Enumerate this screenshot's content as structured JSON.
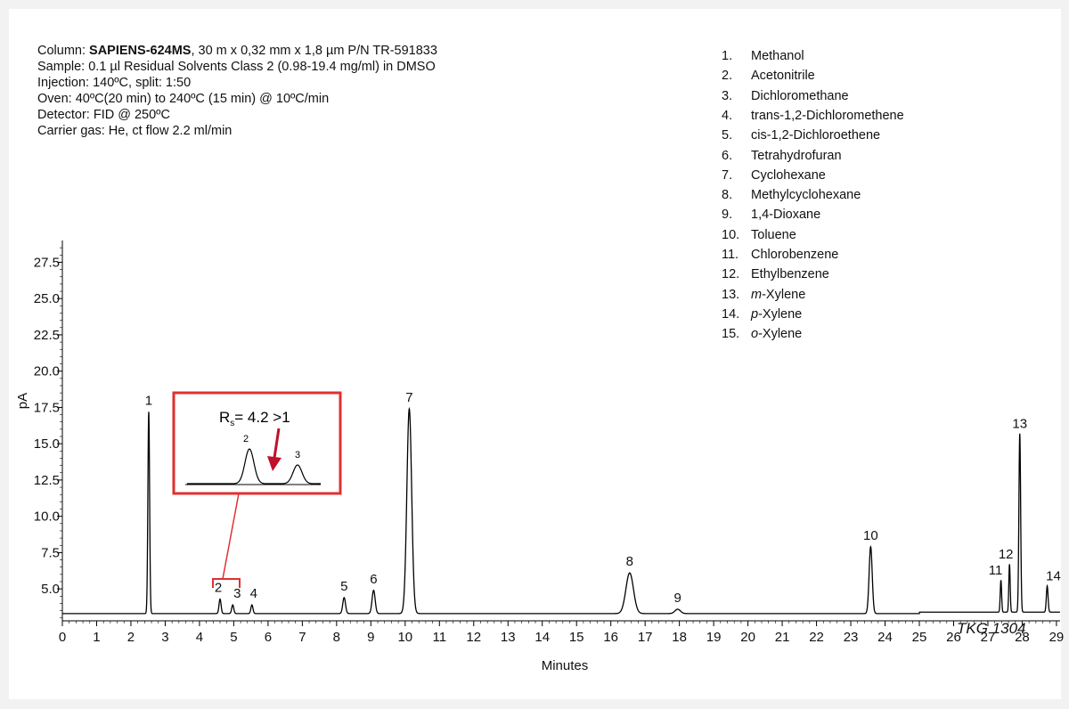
{
  "conditions": {
    "column_prefix": "Column: ",
    "column_name": "SAPIENS-624MS",
    "column_suffix": ", 30 m x 0,32 mm x 1,8 µm P/N TR-591833",
    "sample": "Sample: 0.1 µl Residual Solvents Class 2 (0.98-19.4 mg/ml) in DMSO",
    "injection": "Injection: 140ºC, split: 1:50",
    "oven": "Oven: 40ºC(20 min) to 240ºC (15 min) @ 10ºC/min",
    "detector": "Detector: FID @ 250ºC",
    "carrier": "Carrier gas: He, ct flow 2.2 ml/min"
  },
  "legend": [
    {
      "num": "1.",
      "prefix": "",
      "name": "Methanol"
    },
    {
      "num": "2.",
      "prefix": "",
      "name": "Acetonitrile"
    },
    {
      "num": "3.",
      "prefix": "",
      "name": "Dichloromethane"
    },
    {
      "num": "4.",
      "prefix": "",
      "name": "trans-1,2-Dichloromethene"
    },
    {
      "num": "5.",
      "prefix": "",
      "name": "cis-1,2-Dichloroethene"
    },
    {
      "num": "6.",
      "prefix": "",
      "name": "Tetrahydrofuran"
    },
    {
      "num": "7.",
      "prefix": "",
      "name": "Cyclohexane"
    },
    {
      "num": "8.",
      "prefix": "",
      "name": "Methylcyclohexane"
    },
    {
      "num": "9.",
      "prefix": "",
      "name": "1,4-Dioxane"
    },
    {
      "num": "10.",
      "prefix": "",
      "name": "Toluene"
    },
    {
      "num": "11.",
      "prefix": "",
      "name": "Chlorobenzene"
    },
    {
      "num": "12.",
      "prefix": "",
      "name": "Ethylbenzene"
    },
    {
      "num": "13.",
      "prefix": "m",
      "name": "-Xylene"
    },
    {
      "num": "14.",
      "prefix": "p",
      "name": "-Xylene"
    },
    {
      "num": "15.",
      "prefix": "o",
      "name": "-Xylene"
    }
  ],
  "inset": {
    "rs_symbol": "R",
    "rs_subscript": "s",
    "rs_text": "= 4.2 >1",
    "peak_labels": [
      "2",
      "3"
    ]
  },
  "code_label": "TKG 1304",
  "colors": {
    "trace": "#000000",
    "highlight": "#e03030",
    "arrow": "#c0102a"
  },
  "chart_data": {
    "type": "line",
    "xlabel": "Minutes",
    "ylabel": "pA",
    "xlim": [
      0,
      29.2
    ],
    "ylim": [
      2.8,
      29
    ],
    "x_ticks": [
      0,
      1,
      2,
      3,
      4,
      5,
      6,
      7,
      8,
      9,
      10,
      11,
      12,
      13,
      14,
      15,
      16,
      17,
      18,
      19,
      20,
      21,
      22,
      23,
      24,
      25,
      26,
      27,
      28,
      29
    ],
    "y_ticks": [
      5.0,
      7.5,
      10.0,
      12.5,
      15.0,
      17.5,
      20.0,
      22.5,
      25.0,
      27.5
    ],
    "y_tick_labels": [
      "5.0",
      "7.5",
      "10.0",
      "12.5",
      "15.0",
      "17.5",
      "20.0",
      "22.5",
      "25.0",
      "27.5"
    ],
    "baseline": 3.3,
    "peaks": [
      {
        "label": "1",
        "rt": 2.52,
        "height": 17.2,
        "width": 0.025
      },
      {
        "label": "2",
        "rt": 4.6,
        "height": 4.3,
        "width": 0.03
      },
      {
        "label": "3",
        "rt": 4.97,
        "height": 3.9,
        "width": 0.03
      },
      {
        "label": "4",
        "rt": 5.53,
        "height": 3.9,
        "width": 0.03
      },
      {
        "label": "5",
        "rt": 8.22,
        "height": 4.4,
        "width": 0.04
      },
      {
        "label": "6",
        "rt": 9.08,
        "height": 4.9,
        "width": 0.045
      },
      {
        "label": "7",
        "rt": 10.12,
        "height": 17.4,
        "width": 0.07
      },
      {
        "label": "8",
        "rt": 16.55,
        "height": 6.1,
        "width": 0.11
      },
      {
        "label": "9",
        "rt": 17.95,
        "height": 3.6,
        "width": 0.08
      },
      {
        "label": "10",
        "rt": 23.58,
        "height": 7.9,
        "width": 0.045
      },
      {
        "label": "11",
        "rt": 27.38,
        "height": 5.5,
        "width": 0.02
      },
      {
        "label": "12",
        "rt": 27.63,
        "height": 6.6,
        "width": 0.02
      },
      {
        "label": "13",
        "rt": 27.93,
        "height": 15.6,
        "width": 0.025
      },
      {
        "label": "14",
        "rt": 28.73,
        "height": 5.1,
        "width": 0.025
      }
    ]
  }
}
